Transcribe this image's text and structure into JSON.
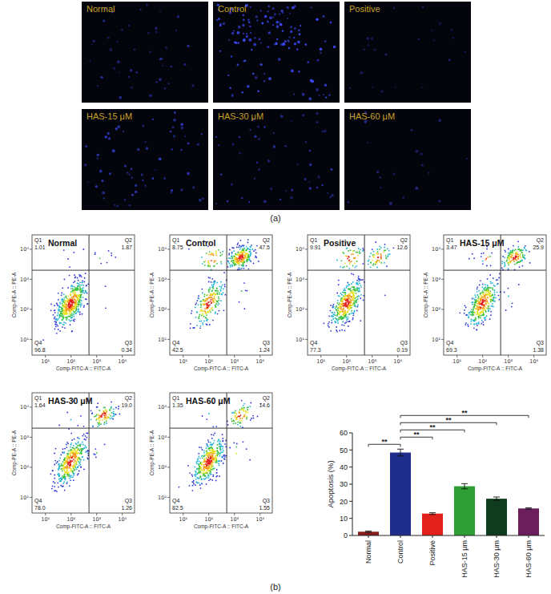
{
  "panel_a": {
    "label": "(a)",
    "images": [
      "Normal",
      "Control",
      "Positive",
      "HAS-15 μM",
      "HAS-30 μM",
      "HAS-60 μM"
    ]
  },
  "panel_b": {
    "label": "(b)"
  },
  "chart_data": [
    {
      "type": "scatter",
      "title": "Normal",
      "x_label": "Comp-FITC-A :: FITC-A",
      "y_label": "Comp-PE-A :: PE-A",
      "log": true,
      "xlim": [
        3,
        30000
      ],
      "ylim": [
        3,
        30000
      ],
      "xticks": [
        {
          "value": 10,
          "label": "10¹"
        },
        {
          "value": 100,
          "label": "10²"
        },
        {
          "value": 1000,
          "label": "10³"
        },
        {
          "value": 10000,
          "label": "10⁴"
        }
      ],
      "yticks": [
        {
          "value": 10,
          "label": "10¹"
        },
        {
          "value": 100,
          "label": "10²"
        },
        {
          "value": 1000,
          "label": "10³"
        },
        {
          "value": 10000,
          "label": "10⁴"
        }
      ],
      "gate_x": 500,
      "gate_y": 2000,
      "quadrants": [
        {
          "name": "Q1",
          "value": 1.01
        },
        {
          "name": "Q2",
          "value": 1.87
        },
        {
          "name": "Q3",
          "value": 0.34
        },
        {
          "name": "Q4",
          "value": 96.8
        }
      ]
    },
    {
      "type": "scatter",
      "title": "Control",
      "x_label": "Comp-FITC-A :: FITC-A",
      "y_label": "Comp-PE-A :: PE-A",
      "log": true,
      "xlim": [
        3,
        30000
      ],
      "ylim": [
        3,
        30000
      ],
      "xticks": [
        {
          "value": 10,
          "label": "10¹"
        },
        {
          "value": 100,
          "label": "10²"
        },
        {
          "value": 1000,
          "label": "10³"
        },
        {
          "value": 10000,
          "label": "10⁴"
        }
      ],
      "yticks": [
        {
          "value": 10,
          "label": "10¹"
        },
        {
          "value": 100,
          "label": "10²"
        },
        {
          "value": 1000,
          "label": "10³"
        },
        {
          "value": 10000,
          "label": "10⁴"
        }
      ],
      "gate_x": 500,
      "gate_y": 2000,
      "quadrants": [
        {
          "name": "Q1",
          "value": 8.75
        },
        {
          "name": "Q2",
          "value": 47.5
        },
        {
          "name": "Q3",
          "value": 1.24
        },
        {
          "name": "Q4",
          "value": 42.5
        }
      ]
    },
    {
      "type": "scatter",
      "title": "Positive",
      "x_label": "Comp-FITC-A :: FITC-A",
      "y_label": "Comp-PE-A :: PE-A",
      "log": true,
      "xlim": [
        3,
        30000
      ],
      "ylim": [
        3,
        30000
      ],
      "xticks": [
        {
          "value": 10,
          "label": "10¹"
        },
        {
          "value": 100,
          "label": "10²"
        },
        {
          "value": 1000,
          "label": "10³"
        },
        {
          "value": 10000,
          "label": "10⁴"
        }
      ],
      "yticks": [
        {
          "value": 10,
          "label": "10¹"
        },
        {
          "value": 100,
          "label": "10²"
        },
        {
          "value": 1000,
          "label": "10³"
        },
        {
          "value": 10000,
          "label": "10⁴"
        }
      ],
      "gate_x": 500,
      "gate_y": 2000,
      "quadrants": [
        {
          "name": "Q1",
          "value": 9.91
        },
        {
          "name": "Q2",
          "value": 12.6
        },
        {
          "name": "Q3",
          "value": 0.19
        },
        {
          "name": "Q4",
          "value": 77.3
        }
      ]
    },
    {
      "type": "scatter",
      "title": "HAS-15 μM",
      "x_label": "Comp-FITC-A :: FITC-A",
      "y_label": "Comp-PE-A :: PE-A",
      "log": true,
      "xlim": [
        3,
        30000
      ],
      "ylim": [
        3,
        30000
      ],
      "xticks": [
        {
          "value": 10,
          "label": "10¹"
        },
        {
          "value": 100,
          "label": "10²"
        },
        {
          "value": 1000,
          "label": "10³"
        },
        {
          "value": 10000,
          "label": "10⁴"
        }
      ],
      "yticks": [
        {
          "value": 10,
          "label": "10¹"
        },
        {
          "value": 100,
          "label": "10²"
        },
        {
          "value": 1000,
          "label": "10³"
        },
        {
          "value": 10000,
          "label": "10⁴"
        }
      ],
      "gate_x": 500,
      "gate_y": 2000,
      "quadrants": [
        {
          "name": "Q1",
          "value": 3.47
        },
        {
          "name": "Q2",
          "value": 25.9
        },
        {
          "name": "Q3",
          "value": 1.38
        },
        {
          "name": "Q4",
          "value": 69.3
        }
      ]
    },
    {
      "type": "scatter",
      "title": "HAS-30 μM",
      "x_label": "Comp-FITC-A :: FITC-A",
      "y_label": "Comp-PE-A :: PE-A",
      "log": true,
      "xlim": [
        3,
        30000
      ],
      "ylim": [
        3,
        30000
      ],
      "xticks": [
        {
          "value": 10,
          "label": "10¹"
        },
        {
          "value": 100,
          "label": "10²"
        },
        {
          "value": 1000,
          "label": "10³"
        },
        {
          "value": 10000,
          "label": "10⁴"
        }
      ],
      "yticks": [
        {
          "value": 10,
          "label": "10¹"
        },
        {
          "value": 100,
          "label": "10²"
        },
        {
          "value": 1000,
          "label": "10³"
        },
        {
          "value": 10000,
          "label": "10⁴"
        }
      ],
      "gate_x": 500,
      "gate_y": 2000,
      "quadrants": [
        {
          "name": "Q1",
          "value": 1.64
        },
        {
          "name": "Q2",
          "value": 19.0,
          "label": "19.0"
        },
        {
          "name": "Q3",
          "value": 1.26
        },
        {
          "name": "Q4",
          "value": 78.0,
          "label": "78.0"
        }
      ]
    },
    {
      "type": "scatter",
      "title": "HAS-60 μM",
      "x_label": "Comp-FITC-A :: FITC-A",
      "y_label": "Comp-PE-A :: PE-A",
      "log": true,
      "xlim": [
        3,
        30000
      ],
      "ylim": [
        3,
        30000
      ],
      "xticks": [
        {
          "value": 10,
          "label": "10¹"
        },
        {
          "value": 100,
          "label": "10²"
        },
        {
          "value": 1000,
          "label": "10³"
        },
        {
          "value": 10000,
          "label": "10⁴"
        }
      ],
      "yticks": [
        {
          "value": 10,
          "label": "10¹"
        },
        {
          "value": 100,
          "label": "10²"
        },
        {
          "value": 1000,
          "label": "10³"
        },
        {
          "value": 10000,
          "label": "10⁴"
        }
      ],
      "gate_x": 500,
      "gate_y": 2000,
      "quadrants": [
        {
          "name": "Q1",
          "value": 1.35
        },
        {
          "name": "Q2",
          "value": 14.6
        },
        {
          "name": "Q3",
          "value": 1.55
        },
        {
          "name": "Q4",
          "value": 82.5
        }
      ]
    },
    {
      "type": "bar",
      "y_label": "Apoptosis (%)",
      "categories": [
        "Normal",
        "Control",
        "Positive",
        "HAS-15 μm",
        "HAS-30 μm",
        "HAS-60 μm"
      ],
      "values": [
        2.2,
        48.5,
        12.8,
        28.8,
        21.5,
        15.8
      ],
      "errors": [
        0.4,
        2.0,
        0.5,
        1.5,
        1.0,
        0.4
      ],
      "colors": [
        "#8b1c1c",
        "#1f2d8c",
        "#e3211c",
        "#2e9e35",
        "#0f3b1f",
        "#6b1d5c"
      ],
      "ylim": [
        0,
        60
      ],
      "yticks": [
        0,
        10,
        20,
        30,
        40,
        50,
        60
      ],
      "comparisons": [
        {
          "from": 1,
          "to": 0,
          "label": "**"
        },
        {
          "from": 1,
          "to": 2,
          "label": "**"
        },
        {
          "from": 1,
          "to": 3,
          "label": "**"
        },
        {
          "from": 1,
          "to": 4,
          "label": "**"
        },
        {
          "from": 1,
          "to": 5,
          "label": "**"
        }
      ]
    }
  ]
}
